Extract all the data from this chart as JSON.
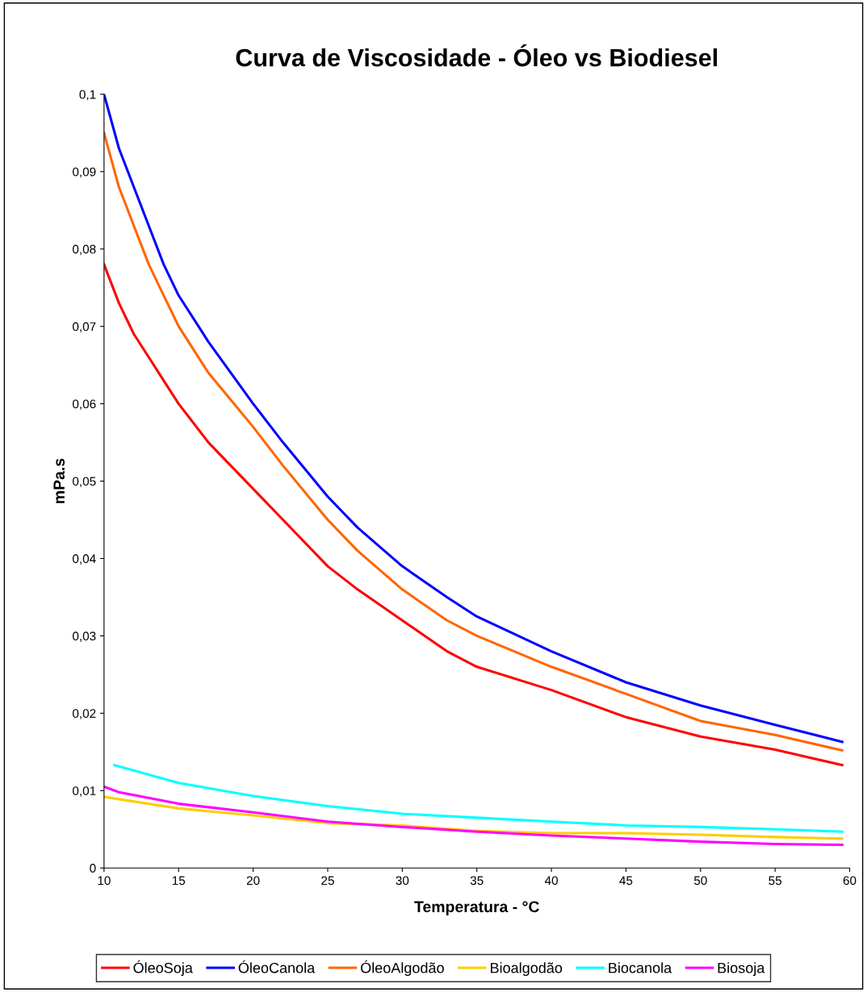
{
  "chart_data": {
    "type": "line",
    "title": "Curva de Viscosidade - Óleo vs Biodiesel",
    "xlabel": "Temperatura - °C",
    "ylabel": "mPa.s",
    "xlim": [
      10,
      60
    ],
    "xticks": [
      10,
      15,
      20,
      25,
      30,
      35,
      40,
      45,
      50,
      55,
      60
    ],
    "ylim": [
      0,
      0.1
    ],
    "yticks": [
      0,
      {
        "value": 0.01,
        "label": "0,01"
      },
      {
        "value": 0.02,
        "label": "0,02"
      },
      {
        "value": 0.03,
        "label": "0,03"
      },
      {
        "value": 0.04,
        "label": "0,04"
      },
      {
        "value": 0.05,
        "label": "0,05"
      },
      {
        "value": 0.06,
        "label": "0,06"
      },
      {
        "value": 0.07,
        "label": "0,07"
      },
      {
        "value": 0.08,
        "label": "0,08"
      },
      {
        "value": 0.09,
        "label": "0,09"
      },
      {
        "value": 0.1,
        "label": "0,1"
      }
    ],
    "grid": false,
    "legend": "bottom",
    "marker": "none",
    "line_style": "solid",
    "series": [
      {
        "name": "ÓleoSoja",
        "color": "#ff0000",
        "x": [
          10,
          11,
          12,
          13,
          14,
          15,
          17,
          20,
          22,
          25,
          27,
          30,
          33,
          35,
          40,
          45,
          50,
          55,
          59.5
        ],
        "values": [
          0.078,
          0.073,
          0.069,
          0.066,
          0.063,
          0.06,
          0.055,
          0.049,
          0.045,
          0.039,
          0.036,
          0.032,
          0.028,
          0.026,
          0.023,
          0.0195,
          0.017,
          0.0153,
          0.0133
        ]
      },
      {
        "name": "ÓleoCanola",
        "color": "#0000ff",
        "x": [
          10,
          11,
          12,
          13,
          14,
          15,
          17,
          20,
          22,
          25,
          27,
          30,
          33,
          35,
          40,
          45,
          50,
          55,
          59.5
        ],
        "values": [
          0.1,
          0.093,
          0.088,
          0.083,
          0.078,
          0.074,
          0.068,
          0.06,
          0.055,
          0.048,
          0.044,
          0.039,
          0.035,
          0.0325,
          0.028,
          0.024,
          0.021,
          0.0185,
          0.0163
        ]
      },
      {
        "name": "ÓleoAlgodão",
        "color": "#ff6600",
        "x": [
          10,
          11,
          12,
          13,
          14,
          15,
          17,
          20,
          22,
          25,
          27,
          30,
          33,
          35,
          40,
          45,
          50,
          55,
          59.5
        ],
        "values": [
          0.095,
          0.088,
          0.083,
          0.078,
          0.074,
          0.07,
          0.064,
          0.057,
          0.052,
          0.045,
          0.041,
          0.036,
          0.032,
          0.03,
          0.026,
          0.0225,
          0.019,
          0.0172,
          0.0152
        ]
      },
      {
        "name": "Bioalgodão",
        "color": "#ffcc00",
        "x": [
          10,
          15,
          20,
          25,
          30,
          35,
          40,
          45,
          50,
          55,
          59.5
        ],
        "values": [
          0.0092,
          0.0077,
          0.0068,
          0.0058,
          0.0055,
          0.0048,
          0.0045,
          0.0045,
          0.0043,
          0.004,
          0.0038
        ]
      },
      {
        "name": "Biocanola",
        "color": "#00ffff",
        "x": [
          10.7,
          15,
          20,
          25,
          30,
          35,
          40,
          45,
          50,
          55,
          59.5
        ],
        "values": [
          0.0133,
          0.011,
          0.0093,
          0.008,
          0.007,
          0.0065,
          0.006,
          0.0055,
          0.0053,
          0.005,
          0.0047
        ]
      },
      {
        "name": "Biosoja",
        "color": "#ff00ff",
        "x": [
          10,
          11,
          15,
          20,
          25,
          30,
          35,
          40,
          45,
          50,
          55,
          59.5
        ],
        "values": [
          0.0105,
          0.0098,
          0.0083,
          0.0072,
          0.006,
          0.0053,
          0.0047,
          0.0042,
          0.0038,
          0.0034,
          0.0031,
          0.003
        ]
      }
    ]
  }
}
